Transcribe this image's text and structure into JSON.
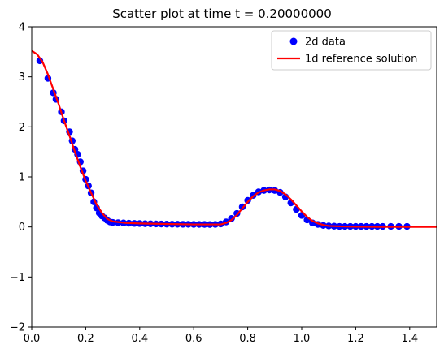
{
  "chart_data": {
    "type": "scatter",
    "title": "Scatter plot at time t =      0.20000000",
    "xlabel": "",
    "ylabel": "",
    "xlim": [
      0,
      1.5
    ],
    "ylim": [
      -2,
      4
    ],
    "xticks": [
      0.0,
      0.2,
      0.4,
      0.6,
      0.8,
      1.0,
      1.2,
      1.4
    ],
    "yticks": [
      -2,
      -1,
      0,
      1,
      2,
      3,
      4
    ],
    "xtick_labels": [
      "0.0",
      "0.2",
      "0.4",
      "0.6",
      "0.8",
      "1.0",
      "1.2",
      "1.4"
    ],
    "ytick_labels": [
      "−2",
      "−1",
      "0",
      "1",
      "2",
      "3",
      "4"
    ],
    "grid": false,
    "legend_position": "top-right",
    "series": [
      {
        "name": "2d data",
        "kind": "scatter",
        "color": "#0000ff",
        "x": [
          0.03,
          0.06,
          0.08,
          0.09,
          0.11,
          0.12,
          0.14,
          0.15,
          0.16,
          0.17,
          0.18,
          0.19,
          0.2,
          0.21,
          0.22,
          0.23,
          0.24,
          0.25,
          0.26,
          0.27,
          0.28,
          0.29,
          0.3,
          0.32,
          0.34,
          0.36,
          0.38,
          0.4,
          0.42,
          0.44,
          0.46,
          0.48,
          0.5,
          0.52,
          0.54,
          0.56,
          0.58,
          0.6,
          0.62,
          0.64,
          0.66,
          0.68,
          0.7,
          0.72,
          0.74,
          0.76,
          0.78,
          0.8,
          0.82,
          0.84,
          0.86,
          0.88,
          0.9,
          0.92,
          0.94,
          0.96,
          0.98,
          1.0,
          1.02,
          1.04,
          1.06,
          1.08,
          1.1,
          1.12,
          1.14,
          1.16,
          1.18,
          1.2,
          1.22,
          1.24,
          1.26,
          1.28,
          1.3,
          1.33,
          1.36,
          1.39
        ],
        "y": [
          3.32,
          2.97,
          2.68,
          2.55,
          2.3,
          2.12,
          1.9,
          1.72,
          1.55,
          1.45,
          1.3,
          1.12,
          0.95,
          0.82,
          0.68,
          0.5,
          0.38,
          0.28,
          0.22,
          0.18,
          0.13,
          0.1,
          0.09,
          0.085,
          0.08,
          0.075,
          0.07,
          0.068,
          0.065,
          0.063,
          0.06,
          0.058,
          0.056,
          0.055,
          0.054,
          0.053,
          0.052,
          0.051,
          0.05,
          0.05,
          0.049,
          0.05,
          0.06,
          0.1,
          0.17,
          0.27,
          0.4,
          0.53,
          0.63,
          0.7,
          0.73,
          0.74,
          0.73,
          0.69,
          0.6,
          0.48,
          0.35,
          0.23,
          0.14,
          0.08,
          0.05,
          0.03,
          0.02,
          0.015,
          0.01,
          0.01,
          0.01,
          0.01,
          0.01,
          0.01,
          0.01,
          0.01,
          0.01,
          0.01,
          0.01,
          0.01
        ]
      },
      {
        "name": "1d reference solution",
        "kind": "line",
        "color": "#ff0000",
        "x": [
          0.0,
          0.02,
          0.04,
          0.06,
          0.08,
          0.1,
          0.12,
          0.14,
          0.16,
          0.18,
          0.2,
          0.22,
          0.24,
          0.26,
          0.28,
          0.3,
          0.35,
          0.4,
          0.5,
          0.6,
          0.7,
          0.72,
          0.74,
          0.76,
          0.78,
          0.8,
          0.82,
          0.84,
          0.86,
          0.88,
          0.9,
          0.92,
          0.94,
          0.96,
          0.98,
          1.0,
          1.02,
          1.04,
          1.06,
          1.08,
          1.1,
          1.15,
          1.2,
          1.3,
          1.4,
          1.5
        ],
        "y": [
          3.52,
          3.45,
          3.3,
          3.05,
          2.75,
          2.45,
          2.12,
          1.82,
          1.5,
          1.2,
          0.92,
          0.68,
          0.45,
          0.28,
          0.16,
          0.11,
          0.08,
          0.07,
          0.06,
          0.05,
          0.05,
          0.08,
          0.14,
          0.24,
          0.37,
          0.5,
          0.61,
          0.69,
          0.73,
          0.75,
          0.75,
          0.72,
          0.65,
          0.55,
          0.43,
          0.31,
          0.2,
          0.12,
          0.07,
          0.04,
          0.02,
          0.01,
          0.005,
          0.0,
          0.0,
          0.0
        ]
      }
    ]
  }
}
